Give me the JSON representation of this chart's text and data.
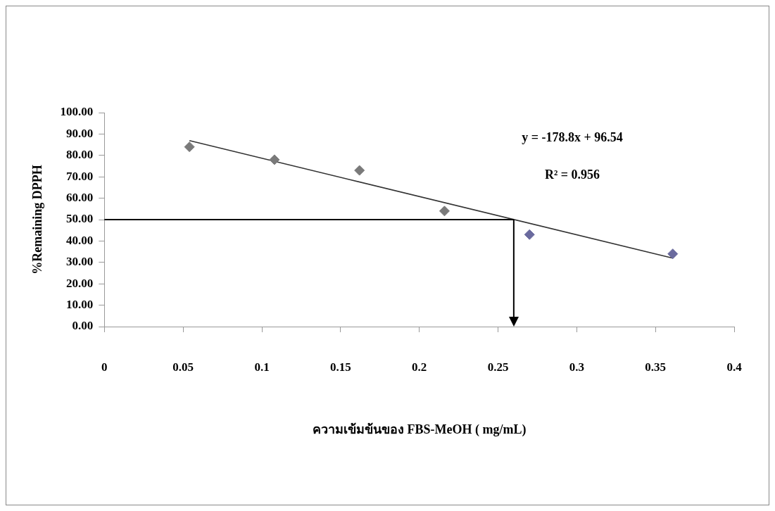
{
  "chart_data": {
    "type": "scatter",
    "xlabel": "ความเข้มข้นของ FBS-MeOH ( mg/mL)",
    "ylabel": "%Remaining DPPH",
    "xlim": [
      0,
      0.4
    ],
    "xticks": [
      0,
      0.05,
      0.1,
      0.15,
      0.2,
      0.25,
      0.3,
      0.35,
      0.4
    ],
    "ylim": [
      0,
      100
    ],
    "yticks": [
      {
        "value": 0,
        "label": "0.00"
      },
      {
        "value": 10,
        "label": "10.00"
      },
      {
        "value": 20,
        "label": "20.00"
      },
      {
        "value": 30,
        "label": "30.00"
      },
      {
        "value": 40,
        "label": "40.00"
      },
      {
        "value": 50,
        "label": "50.00"
      },
      {
        "value": 60,
        "label": "60.00"
      },
      {
        "value": 70,
        "label": "70.00"
      },
      {
        "value": 80,
        "label": "80.00"
      },
      {
        "value": 90,
        "label": "90.00"
      },
      {
        "value": 100,
        "label": "100.00"
      }
    ],
    "series": [
      {
        "x": [
          0.054,
          0.108,
          0.162,
          0.216,
          0.27,
          0.361
        ],
        "values": [
          84,
          78,
          73,
          54,
          43,
          34
        ],
        "colors": [
          "#7a7a7a",
          "#7a7a7a",
          "#7a7a7a",
          "#7a7a7a",
          "#6a6a9e",
          "#6a6a9e"
        ]
      },
      {
        "type": "line",
        "x": [
          0.054,
          0.361
        ],
        "values": [
          86.9,
          32.0
        ],
        "color": "#333333",
        "marker": "none"
      }
    ],
    "ref_lines": [
      {
        "axis": "y",
        "value": 50,
        "color": "#000000"
      },
      {
        "axis": "x",
        "value": 0.26,
        "color": "#000000"
      }
    ],
    "annotations": [
      "y = -178.8x + 96.54",
      "R² = 0.956"
    ],
    "marker": "diamond",
    "grid": false,
    "legend": false
  }
}
